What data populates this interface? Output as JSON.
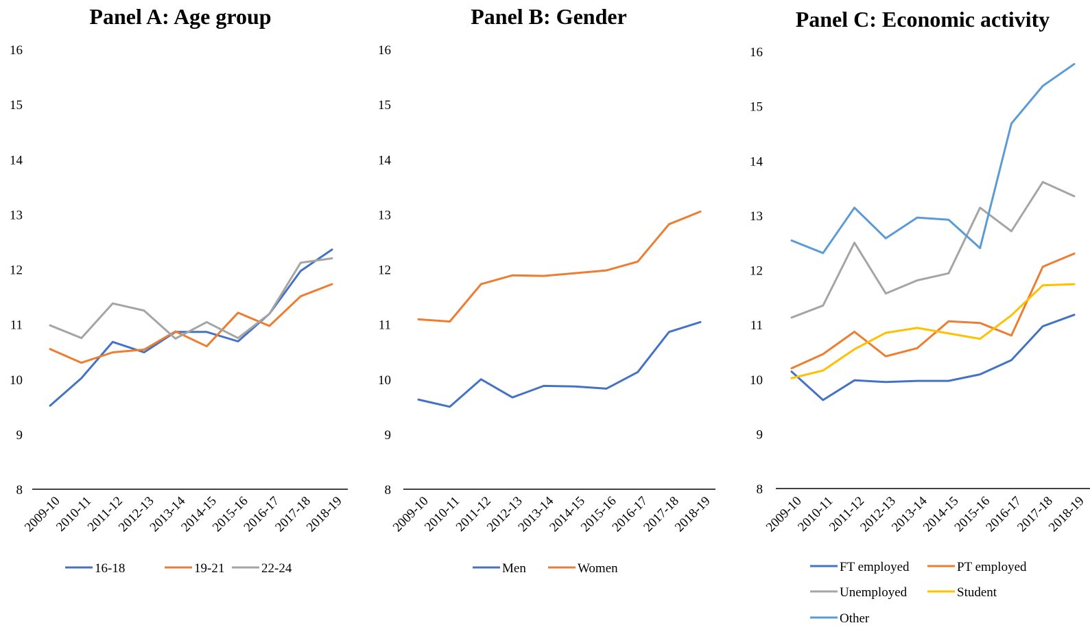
{
  "chart_data": [
    {
      "type": "line",
      "title": "Panel A: Age group",
      "categories": [
        "2009-10",
        "2010-11",
        "2011-12",
        "2012-13",
        "2013-14",
        "2014-15",
        "2015-16",
        "2016-17",
        "2017-18",
        "2018-19"
      ],
      "ylim": [
        8,
        16
      ],
      "yticks": [
        "8",
        "9",
        "10",
        "11",
        "12",
        "13",
        "14",
        "15",
        "16"
      ],
      "grid": false,
      "legend_position": "bottom",
      "series": [
        {
          "name": "16-18",
          "color": "#4472C4",
          "values": [
            9.52,
            10.02,
            10.68,
            10.49,
            10.86,
            10.86,
            10.69,
            11.19,
            11.97,
            12.36
          ]
        },
        {
          "name": "19-21",
          "color": "#ED7D31",
          "values": [
            10.55,
            10.3,
            10.49,
            10.54,
            10.87,
            10.6,
            11.21,
            10.97,
            11.51,
            11.73
          ]
        },
        {
          "name": "22-24",
          "color": "#A5A5A5",
          "values": [
            10.98,
            10.75,
            11.38,
            11.25,
            10.74,
            11.04,
            10.75,
            11.19,
            12.12,
            12.2
          ]
        }
      ]
    },
    {
      "type": "line",
      "title": "Panel B: Gender",
      "categories": [
        "2009-10",
        "2010-11",
        "2011-12",
        "2012-13",
        "2013-14",
        "2014-15",
        "2015-16",
        "2016-17",
        "2017-18",
        "2018-19"
      ],
      "ylim": [
        8,
        16
      ],
      "yticks": [
        "8",
        "9",
        "10",
        "11",
        "12",
        "13",
        "14",
        "15",
        "16"
      ],
      "grid": false,
      "legend_position": "bottom",
      "series": [
        {
          "name": "Men",
          "color": "#4472C4",
          "values": [
            9.63,
            9.5,
            10.0,
            9.67,
            9.88,
            9.87,
            9.83,
            10.13,
            10.86,
            11.04
          ]
        },
        {
          "name": "Women",
          "color": "#ED7D31",
          "values": [
            11.09,
            11.05,
            11.73,
            11.89,
            11.88,
            11.93,
            11.98,
            12.14,
            12.82,
            13.05
          ]
        }
      ]
    },
    {
      "type": "line",
      "title": "Panel C: Economic activity",
      "categories": [
        "2009-10",
        "2010-11",
        "2011-12",
        "2012-13",
        "2013-14",
        "2014-15",
        "2015-16",
        "2016-17",
        "2017-18",
        "2018-19"
      ],
      "ylim": [
        8,
        16
      ],
      "yticks": [
        "8",
        "9",
        "10",
        "11",
        "12",
        "13",
        "14",
        "15",
        "16"
      ],
      "grid": false,
      "legend_position": "bottom",
      "series": [
        {
          "name": "FT employed",
          "color": "#4472C4",
          "values": [
            10.14,
            9.62,
            9.98,
            9.95,
            9.97,
            9.97,
            10.09,
            10.35,
            10.97,
            11.18
          ]
        },
        {
          "name": "PT employed",
          "color": "#ED7D31",
          "values": [
            10.2,
            10.46,
            10.87,
            10.42,
            10.57,
            11.06,
            11.03,
            10.8,
            12.06,
            12.3
          ]
        },
        {
          "name": "Unemployed",
          "color": "#A5A5A5",
          "values": [
            11.13,
            11.35,
            12.5,
            11.57,
            11.81,
            11.94,
            13.14,
            12.71,
            13.61,
            13.35
          ]
        },
        {
          "name": "Student",
          "color": "#FFC000",
          "values": [
            10.02,
            10.16,
            10.55,
            10.85,
            10.94,
            10.84,
            10.74,
            11.17,
            11.72,
            11.74
          ]
        },
        {
          "name": "Other",
          "color": "#5B9BD5",
          "values": [
            12.54,
            12.31,
            13.14,
            12.58,
            12.96,
            12.92,
            12.4,
            14.68,
            15.37,
            15.77
          ]
        }
      ]
    }
  ]
}
